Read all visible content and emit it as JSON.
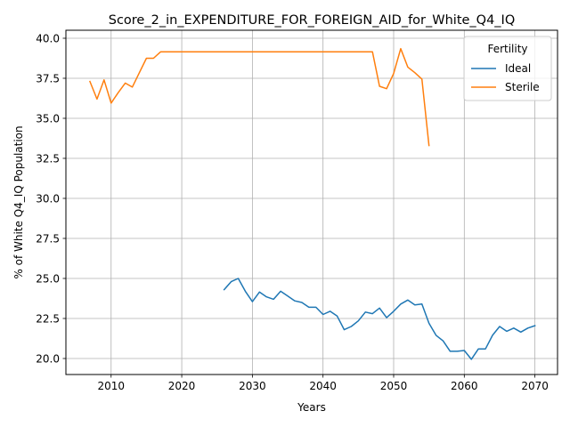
{
  "chart_data": {
    "type": "line",
    "title": "Score_2_in_EXPENDITURE_FOR_FOREIGN_AID_for_White_Q4_IQ",
    "xlabel": "Years",
    "ylabel": "% of White Q4_IQ Population",
    "xlim": [
      2003.6,
      2073.2
    ],
    "ylim": [
      19.0,
      40.5
    ],
    "x_ticks": [
      2010,
      2020,
      2030,
      2040,
      2050,
      2060,
      2070
    ],
    "y_ticks": [
      20.0,
      22.5,
      25.0,
      27.5,
      30.0,
      32.5,
      35.0,
      37.5,
      40.0
    ],
    "x_tick_labels": [
      "2010",
      "2020",
      "2030",
      "2040",
      "2050",
      "2060",
      "2070"
    ],
    "y_tick_labels": [
      "20.0",
      "22.5",
      "25.0",
      "27.5",
      "30.0",
      "32.5",
      "35.0",
      "37.5",
      "40.0"
    ],
    "grid": true,
    "legend": {
      "title": "Fertility",
      "placement": "top-right"
    },
    "series": [
      {
        "name": "Ideal",
        "color": "#1f77b4",
        "x": [
          2026,
          2027,
          2028,
          2029,
          2030,
          2031,
          2032,
          2033,
          2034,
          2035,
          2036,
          2037,
          2038,
          2039,
          2040,
          2041,
          2042,
          2043,
          2044,
          2045,
          2046,
          2047,
          2048,
          2049,
          2050,
          2051,
          2052,
          2053,
          2054,
          2055,
          2056,
          2057,
          2058,
          2059,
          2060,
          2061,
          2062,
          2063,
          2064,
          2065,
          2066,
          2067,
          2068,
          2069,
          2070
        ],
        "values": [
          24.3,
          24.8,
          25.0,
          24.2,
          23.55,
          24.15,
          23.85,
          23.7,
          24.2,
          23.9,
          23.6,
          23.5,
          23.2,
          23.2,
          22.75,
          22.95,
          22.65,
          21.8,
          22.0,
          22.35,
          22.9,
          22.8,
          23.15,
          22.55,
          22.95,
          23.4,
          23.65,
          23.35,
          23.4,
          22.2,
          21.45,
          21.1,
          20.45,
          20.45,
          20.5,
          19.95,
          20.6,
          20.6,
          21.45,
          22.0,
          21.7,
          21.9,
          21.65,
          21.9,
          22.05
        ]
      },
      {
        "name": "Sterile",
        "color": "#ff7f0e",
        "x": [
          2007,
          2008,
          2009,
          2010,
          2011,
          2012,
          2013,
          2014,
          2015,
          2016,
          2017,
          2018,
          2019,
          2020,
          2021,
          2022,
          2023,
          2024,
          2025,
          2026,
          2027,
          2028,
          2029,
          2030,
          2031,
          2032,
          2033,
          2034,
          2035,
          2036,
          2037,
          2038,
          2039,
          2040,
          2041,
          2042,
          2043,
          2044,
          2045,
          2046,
          2047,
          2048,
          2049,
          2050,
          2051,
          2052,
          2053,
          2054,
          2055
        ],
        "values": [
          37.3,
          36.2,
          37.4,
          35.95,
          36.6,
          37.2,
          36.95,
          37.85,
          38.75,
          38.75,
          39.15,
          39.15,
          39.15,
          39.15,
          39.15,
          39.15,
          39.15,
          39.15,
          39.15,
          39.15,
          39.15,
          39.15,
          39.15,
          39.15,
          39.15,
          39.15,
          39.15,
          39.15,
          39.15,
          39.15,
          39.15,
          39.15,
          39.15,
          39.15,
          39.15,
          39.15,
          39.15,
          39.15,
          39.15,
          39.15,
          39.15,
          37.0,
          36.85,
          37.8,
          39.35,
          38.2,
          37.85,
          37.45,
          33.3
        ]
      }
    ]
  }
}
